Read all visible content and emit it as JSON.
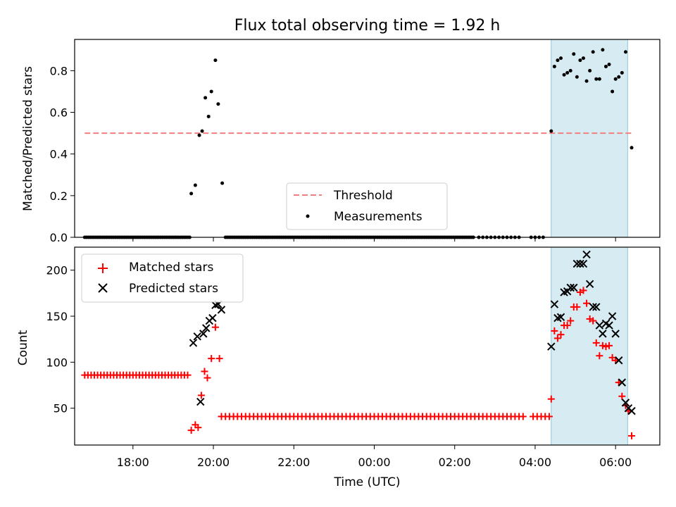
{
  "title": "Flux total observing time = 1.92 h",
  "colors": {
    "threshold": "#f08080",
    "measurement": "#000000",
    "matched": "#ff0000",
    "predicted": "#000000",
    "span": "#add8e6"
  },
  "chart_data": [
    {
      "type": "scatter",
      "ylabel": "Matched/Predicted stars",
      "xlim": [
        16.55,
        31.1
      ],
      "ylim": [
        0,
        0.95
      ],
      "yticks": [
        0.0,
        0.2,
        0.4,
        0.6,
        0.8
      ],
      "ytick_labels": [
        "0.0",
        "0.2",
        "0.4",
        "0.6",
        "0.8"
      ],
      "shaded_span": [
        28.4,
        30.3
      ],
      "legend": {
        "placement": "lower center",
        "entries": [
          "Threshold",
          "Measurements"
        ]
      },
      "threshold": {
        "name": "Threshold",
        "y": 0.5,
        "x": [
          16.8,
          30.4
        ],
        "style": "dashed"
      },
      "measurements": {
        "name": "Measurements",
        "zero_runs": [
          [
            16.8,
            19.45,
            0.045
          ],
          [
            20.3,
            26.5,
            0.045
          ],
          [
            26.6,
            27.6,
            0.1
          ]
        ],
        "zero_points": [
          [
            27.9,
            0
          ],
          [
            28.0,
            0
          ],
          [
            28.1,
            0
          ],
          [
            28.2,
            0
          ]
        ],
        "points": [
          [
            19.45,
            0.21
          ],
          [
            19.55,
            0.25
          ],
          [
            19.65,
            0.49
          ],
          [
            19.72,
            0.51
          ],
          [
            19.8,
            0.67
          ],
          [
            19.88,
            0.58
          ],
          [
            19.95,
            0.7
          ],
          [
            20.05,
            0.85
          ],
          [
            20.12,
            0.64
          ],
          [
            20.22,
            0.26
          ],
          [
            28.4,
            0.51
          ],
          [
            28.48,
            0.82
          ],
          [
            28.56,
            0.85
          ],
          [
            28.64,
            0.86
          ],
          [
            28.72,
            0.78
          ],
          [
            28.8,
            0.79
          ],
          [
            28.88,
            0.8
          ],
          [
            28.96,
            0.88
          ],
          [
            29.04,
            0.77
          ],
          [
            29.12,
            0.85
          ],
          [
            29.2,
            0.86
          ],
          [
            29.28,
            0.75
          ],
          [
            29.36,
            0.8
          ],
          [
            29.44,
            0.89
          ],
          [
            29.52,
            0.76
          ],
          [
            29.6,
            0.76
          ],
          [
            29.68,
            0.9
          ],
          [
            29.76,
            0.82
          ],
          [
            29.84,
            0.83
          ],
          [
            29.92,
            0.7
          ],
          [
            30.0,
            0.76
          ],
          [
            30.08,
            0.77
          ],
          [
            30.16,
            0.79
          ],
          [
            30.25,
            0.89
          ],
          [
            30.4,
            0.43
          ]
        ]
      }
    },
    {
      "type": "scatter",
      "ylabel": "Count",
      "xlabel": "Time (UTC)",
      "xlim": [
        16.55,
        31.1
      ],
      "ylim": [
        10,
        225
      ],
      "yticks": [
        50,
        100,
        150,
        200
      ],
      "ytick_labels": [
        "50",
        "100",
        "150",
        "200"
      ],
      "xticks": [
        18,
        20,
        22,
        24,
        26,
        28,
        30
      ],
      "xtick_labels": [
        "18:00",
        "20:00",
        "22:00",
        "00:00",
        "02:00",
        "04:00",
        "06:00"
      ],
      "shaded_span": [
        28.4,
        30.3
      ],
      "legend": {
        "placement": "upper left",
        "entries": [
          "Matched stars",
          "Predicted stars"
        ]
      },
      "matched": {
        "name": "Matched stars",
        "runs": [
          [
            16.8,
            19.4,
            86,
            0.08
          ],
          [
            20.2,
            27.7,
            41,
            0.1
          ]
        ],
        "points": [
          [
            27.95,
            41
          ],
          [
            28.05,
            41
          ],
          [
            28.15,
            41
          ],
          [
            28.25,
            41
          ],
          [
            28.35,
            41
          ],
          [
            19.45,
            26
          ],
          [
            19.55,
            32
          ],
          [
            19.62,
            29
          ],
          [
            19.7,
            64
          ],
          [
            19.78,
            90
          ],
          [
            19.85,
            83
          ],
          [
            19.95,
            104
          ],
          [
            20.05,
            138
          ],
          [
            20.15,
            104
          ],
          [
            28.4,
            60
          ],
          [
            28.48,
            134
          ],
          [
            28.56,
            126
          ],
          [
            28.64,
            130
          ],
          [
            28.72,
            140
          ],
          [
            28.8,
            140
          ],
          [
            28.88,
            145
          ],
          [
            28.96,
            160
          ],
          [
            29.04,
            160
          ],
          [
            29.12,
            176
          ],
          [
            29.2,
            178
          ],
          [
            29.28,
            164
          ],
          [
            29.36,
            147
          ],
          [
            29.44,
            145
          ],
          [
            29.52,
            121
          ],
          [
            29.6,
            107
          ],
          [
            29.68,
            118
          ],
          [
            29.76,
            117
          ],
          [
            29.84,
            118
          ],
          [
            29.92,
            105
          ],
          [
            30.0,
            102
          ],
          [
            30.08,
            78
          ],
          [
            30.16,
            63
          ],
          [
            30.25,
            53
          ],
          [
            30.32,
            47
          ],
          [
            30.4,
            20
          ]
        ]
      },
      "predicted": {
        "name": "Predicted stars",
        "points": [
          [
            19.5,
            121
          ],
          [
            19.6,
            128
          ],
          [
            19.68,
            57
          ],
          [
            19.75,
            131
          ],
          [
            19.82,
            137
          ],
          [
            19.9,
            145
          ],
          [
            19.98,
            148
          ],
          [
            20.05,
            162
          ],
          [
            20.12,
            163
          ],
          [
            20.2,
            157
          ],
          [
            28.4,
            117
          ],
          [
            28.48,
            163
          ],
          [
            28.56,
            148
          ],
          [
            28.64,
            149
          ],
          [
            28.72,
            176
          ],
          [
            28.8,
            177
          ],
          [
            28.88,
            181
          ],
          [
            28.96,
            181
          ],
          [
            29.04,
            207
          ],
          [
            29.12,
            207
          ],
          [
            29.2,
            207
          ],
          [
            29.28,
            217
          ],
          [
            29.36,
            185
          ],
          [
            29.44,
            160
          ],
          [
            29.52,
            160
          ],
          [
            29.6,
            140
          ],
          [
            29.68,
            131
          ],
          [
            29.76,
            142
          ],
          [
            29.84,
            140
          ],
          [
            29.92,
            150
          ],
          [
            30.0,
            131
          ],
          [
            30.08,
            102
          ],
          [
            30.16,
            78
          ],
          [
            30.25,
            56
          ],
          [
            30.32,
            50
          ],
          [
            30.4,
            47
          ]
        ]
      }
    }
  ]
}
